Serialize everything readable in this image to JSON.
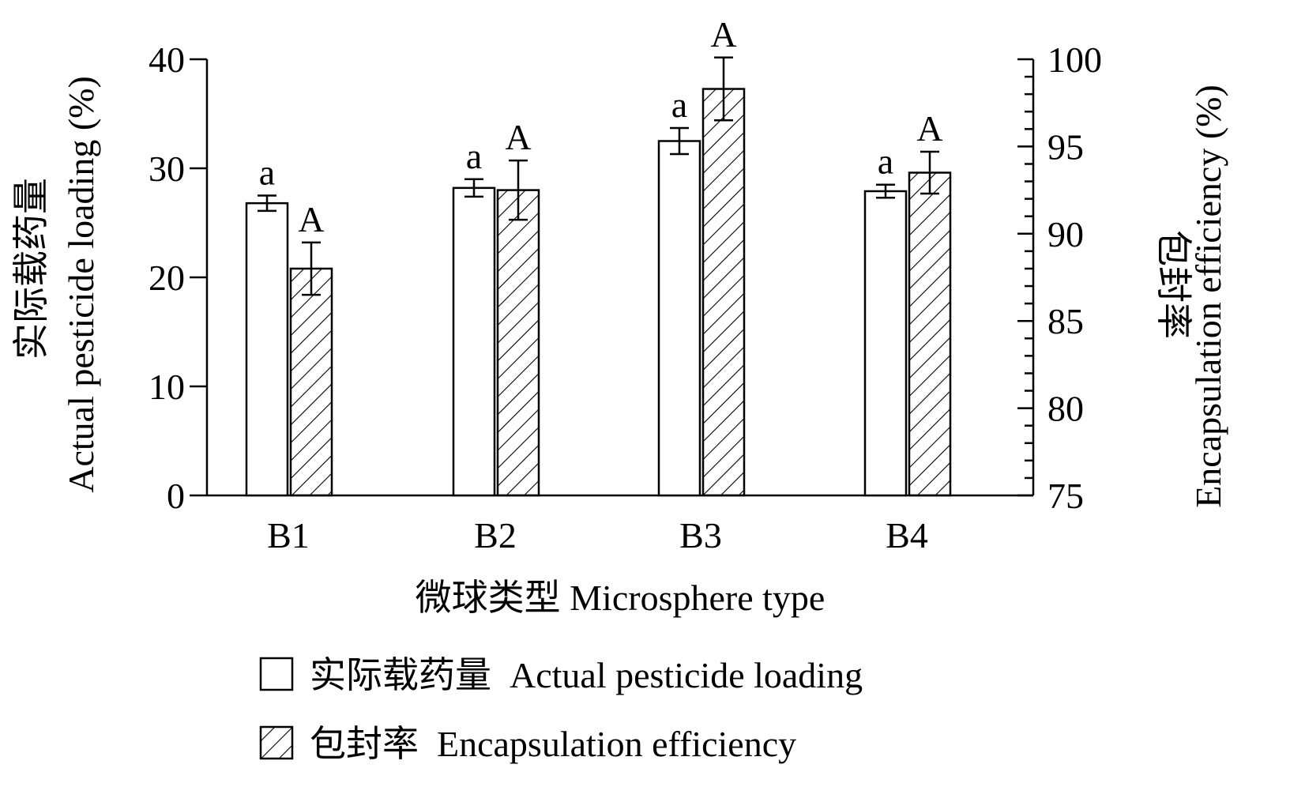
{
  "chart_data": {
    "type": "bar",
    "title": "",
    "xlabel": "微球类型  Microsphere type",
    "ylabel": "实际载药量 Actual pesticide loading (%)",
    "ylabel_cn": "实际载药量",
    "ylabel_en": "Actual pesticide loading (%)",
    "y2label_cn": "包封率",
    "y2label_en": "Encapsulation efficiency (%)",
    "categories": [
      "B1",
      "B2",
      "B3",
      "B4"
    ],
    "ylim": [
      0,
      40
    ],
    "yticks": [
      0,
      10,
      20,
      30,
      40
    ],
    "y2lim": [
      75,
      100
    ],
    "y2ticks": [
      75,
      80,
      85,
      90,
      95,
      100
    ],
    "grid": false,
    "legend_placement": "bottom",
    "series": [
      {
        "name": "实际载药量  Actual pesticide loading",
        "axis": "left",
        "pattern": "open",
        "values": [
          26.8,
          28.2,
          32.5,
          27.9
        ],
        "errors": [
          0.7,
          0.8,
          1.2,
          0.6
        ],
        "letters": [
          "a",
          "a",
          "a",
          "a"
        ]
      },
      {
        "name": "包封率  Encapsulation efficiency",
        "axis": "right",
        "pattern": "hatched",
        "values": [
          88.0,
          92.5,
          98.3,
          93.5
        ],
        "errors": [
          1.5,
          1.7,
          1.8,
          1.2
        ],
        "letters": [
          "A",
          "A",
          "A",
          "A"
        ]
      }
    ]
  }
}
